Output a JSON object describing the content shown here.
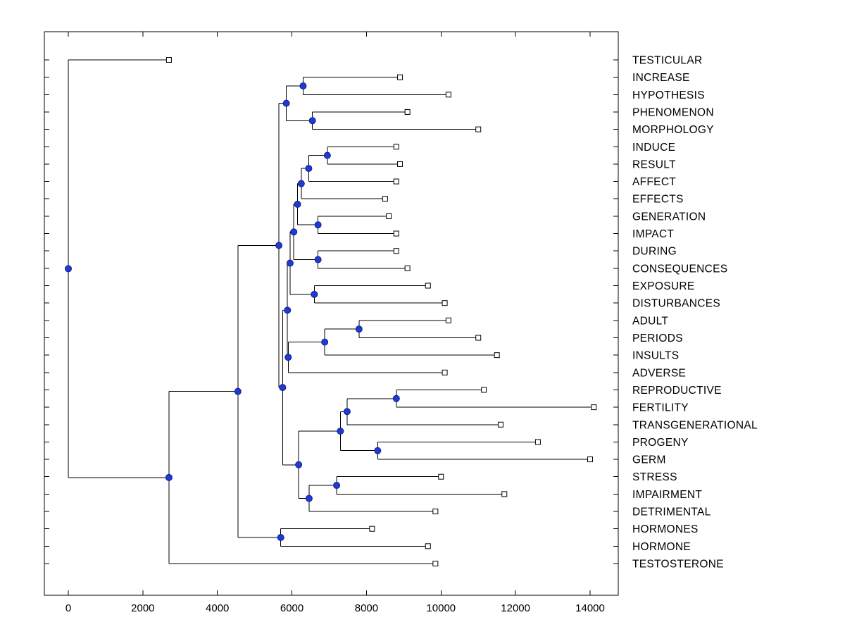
{
  "figure": {
    "background": "#ffffff"
  },
  "chart_data": {
    "type": "dendrogram",
    "subtype": "phylogenetic-tree",
    "orientation": "root-left-leaves-right",
    "title": "",
    "xlabel": "",
    "ylabel": "",
    "grid": false,
    "legend": false,
    "x_axis": {
      "min": 0,
      "max": 14000,
      "tick_step": 2000,
      "ticks": [
        "0",
        "2000",
        "4000",
        "6000",
        "8000",
        "10000",
        "12000",
        "14000"
      ],
      "tick_values": [
        0,
        2000,
        4000,
        6000,
        8000,
        10000,
        12000,
        14000
      ]
    },
    "markers": {
      "leaf": "open-square",
      "branch": "filled-circle"
    },
    "style": {
      "line_color": "#000000",
      "branch_node_fill": "#1f3bd2",
      "branch_node_stroke": "#101f8c",
      "leaf_marker_fill": "#ffffff",
      "leaf_marker_stroke": "#000000",
      "text_color": "#000000"
    },
    "leaves": [
      {
        "label": "TESTICULAR",
        "distance": 2700
      },
      {
        "label": "INCREASE",
        "distance": 8900
      },
      {
        "label": "HYPOTHESIS",
        "distance": 10200
      },
      {
        "label": "PHENOMENON",
        "distance": 9100
      },
      {
        "label": "MORPHOLOGY",
        "distance": 11000
      },
      {
        "label": "INDUCE",
        "distance": 8800
      },
      {
        "label": "RESULT",
        "distance": 8900
      },
      {
        "label": "AFFECT",
        "distance": 8800
      },
      {
        "label": "EFFECTS",
        "distance": 8500
      },
      {
        "label": "GENERATION",
        "distance": 8600
      },
      {
        "label": "IMPACT",
        "distance": 8800
      },
      {
        "label": "DURING",
        "distance": 8800
      },
      {
        "label": "CONSEQUENCES",
        "distance": 9100
      },
      {
        "label": "EXPOSURE",
        "distance": 9650
      },
      {
        "label": "DISTURBANCES",
        "distance": 10100
      },
      {
        "label": "ADULT",
        "distance": 10200
      },
      {
        "label": "PERIODS",
        "distance": 11000
      },
      {
        "label": "INSULTS",
        "distance": 11500
      },
      {
        "label": "ADVERSE",
        "distance": 10100
      },
      {
        "label": "REPRODUCTIVE",
        "distance": 11150
      },
      {
        "label": "FERTILITY",
        "distance": 14100
      },
      {
        "label": "TRANSGENERATIONAL",
        "distance": 11600
      },
      {
        "label": "PROGENY",
        "distance": 12600
      },
      {
        "label": "GERM",
        "distance": 14000
      },
      {
        "label": "STRESS",
        "distance": 10000
      },
      {
        "label": "IMPAIRMENT",
        "distance": 11700
      },
      {
        "label": "DETRIMENTAL",
        "distance": 9850
      },
      {
        "label": "HORMONES",
        "distance": 8150
      },
      {
        "label": "HORMONE",
        "distance": 9650
      },
      {
        "label": "TESTOSTERONE",
        "distance": 9850
      }
    ],
    "tree": {
      "d": 0,
      "children": [
        {
          "label": "TESTICULAR",
          "d": 2700
        },
        {
          "d": 2700,
          "children": [
            {
              "d": 4550,
              "children": [
                {
                  "d": 5650,
                  "children": [
                    {
                      "d": 5850,
                      "children": [
                        {
                          "d": 6300,
                          "children": [
                            {
                              "label": "INCREASE",
                              "d": 8900
                            },
                            {
                              "label": "HYPOTHESIS",
                              "d": 10200
                            }
                          ]
                        },
                        {
                          "d": 6550,
                          "children": [
                            {
                              "label": "PHENOMENON",
                              "d": 9100
                            },
                            {
                              "label": "MORPHOLOGY",
                              "d": 11000
                            }
                          ]
                        }
                      ]
                    },
                    {
                      "d": 5750,
                      "children": [
                        {
                          "d": 5880,
                          "children": [
                            {
                              "d": 5950,
                              "children": [
                                {
                                  "d": 6050,
                                  "children": [
                                    {
                                      "d": 6150,
                                      "children": [
                                        {
                                          "d": 6250,
                                          "children": [
                                            {
                                              "d": 6450,
                                              "children": [
                                                {
                                                  "d": 6950,
                                                  "children": [
                                                    {
                                                      "label": "INDUCE",
                                                      "d": 8800
                                                    },
                                                    {
                                                      "label": "RESULT",
                                                      "d": 8900
                                                    }
                                                  ]
                                                },
                                                {
                                                  "label": "AFFECT",
                                                  "d": 8800
                                                }
                                              ]
                                            },
                                            {
                                              "label": "EFFECTS",
                                              "d": 8500
                                            }
                                          ]
                                        },
                                        {
                                          "d": 6700,
                                          "children": [
                                            {
                                              "label": "GENERATION",
                                              "d": 8600
                                            },
                                            {
                                              "label": "IMPACT",
                                              "d": 8800
                                            }
                                          ]
                                        }
                                      ]
                                    },
                                    {
                                      "d": 6700,
                                      "children": [
                                        {
                                          "label": "DURING",
                                          "d": 8800
                                        },
                                        {
                                          "label": "CONSEQUENCES",
                                          "d": 9100
                                        }
                                      ]
                                    }
                                  ]
                                },
                                {
                                  "d": 6600,
                                  "children": [
                                    {
                                      "label": "EXPOSURE",
                                      "d": 9650
                                    },
                                    {
                                      "label": "DISTURBANCES",
                                      "d": 10100
                                    }
                                  ]
                                }
                              ]
                            },
                            {
                              "d": 5900,
                              "children": [
                                {
                                  "d": 6880,
                                  "children": [
                                    {
                                      "d": 7800,
                                      "children": [
                                        {
                                          "label": "ADULT",
                                          "d": 10200
                                        },
                                        {
                                          "label": "PERIODS",
                                          "d": 11000
                                        }
                                      ]
                                    },
                                    {
                                      "label": "INSULTS",
                                      "d": 11500
                                    }
                                  ]
                                },
                                {
                                  "label": "ADVERSE",
                                  "d": 10100
                                }
                              ]
                            }
                          ]
                        },
                        {
                          "d": 6180,
                          "children": [
                            {
                              "d": 7300,
                              "children": [
                                {
                                  "d": 7480,
                                  "children": [
                                    {
                                      "d": 8800,
                                      "children": [
                                        {
                                          "label": "REPRODUCTIVE",
                                          "d": 11150
                                        },
                                        {
                                          "label": "FERTILITY",
                                          "d": 14100
                                        }
                                      ]
                                    },
                                    {
                                      "label": "TRANSGENERATIONAL",
                                      "d": 11600
                                    }
                                  ]
                                },
                                {
                                  "d": 8300,
                                  "children": [
                                    {
                                      "label": "PROGENY",
                                      "d": 12600
                                    },
                                    {
                                      "label": "GERM",
                                      "d": 14000
                                    }
                                  ]
                                }
                              ]
                            },
                            {
                              "d": 6460,
                              "children": [
                                {
                                  "d": 7200,
                                  "children": [
                                    {
                                      "label": "STRESS",
                                      "d": 10000
                                    },
                                    {
                                      "label": "IMPAIRMENT",
                                      "d": 11700
                                    }
                                  ]
                                },
                                {
                                  "label": "DETRIMENTAL",
                                  "d": 9850
                                }
                              ]
                            }
                          ]
                        }
                      ]
                    }
                  ]
                },
                {
                  "d": 5700,
                  "children": [
                    {
                      "label": "HORMONES",
                      "d": 8150
                    },
                    {
                      "label": "HORMONE",
                      "d": 9650
                    }
                  ]
                }
              ]
            },
            {
              "label": "TESTOSTERONE",
              "d": 9850
            }
          ]
        }
      ]
    }
  }
}
